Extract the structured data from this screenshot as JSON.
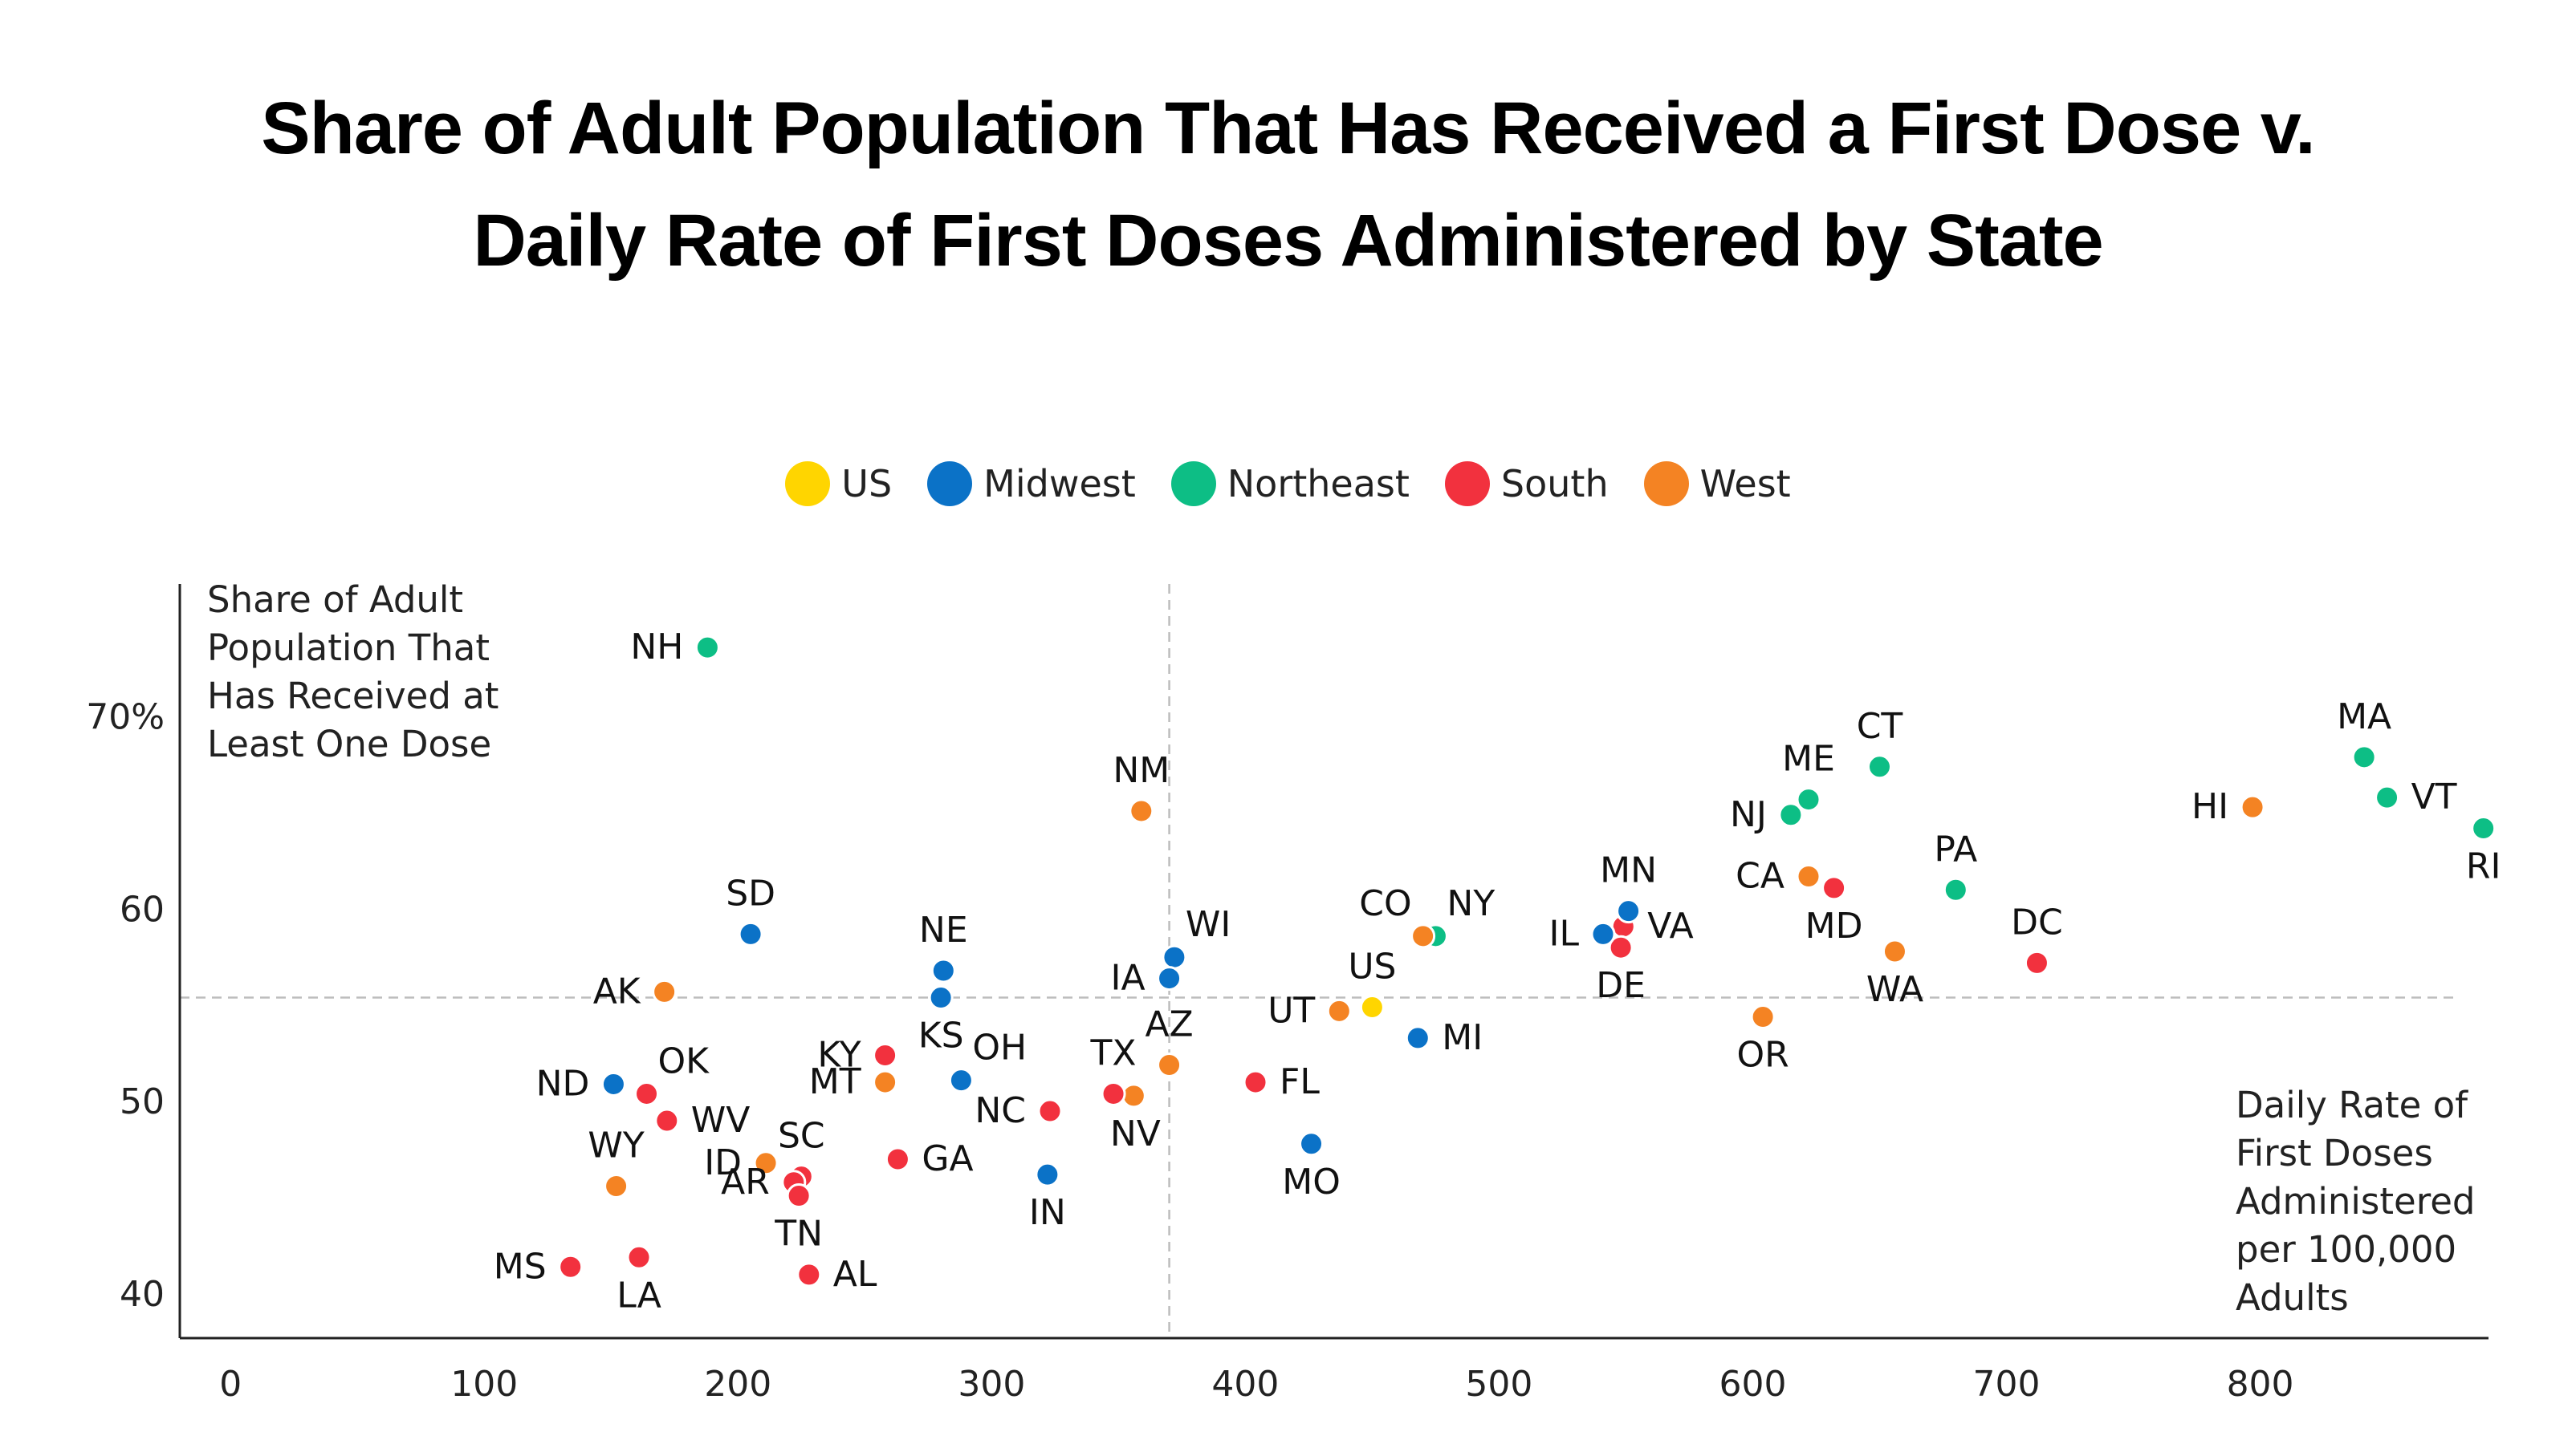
{
  "chart_data": {
    "type": "scatter",
    "title": [
      "Share of Adult Population That Has Received a First Dose v.",
      "Daily Rate of First Doses Administered by State"
    ],
    "ylabel": "Share of Adult Population That Has Received at Least One Dose",
    "ylabel_lines": [
      "Share of Adult",
      "Population That",
      "Has Received at",
      "Least One Dose"
    ],
    "xlabel": "Daily Rate of First Doses Administered per 100,000 Adults",
    "xlabel_lines": [
      "Daily Rate of",
      "First Doses",
      "Administered",
      "per 100,000",
      "Adults"
    ],
    "xlim": [
      -20,
      890
    ],
    "ylim": [
      37.7,
      76.9
    ],
    "x_ticks": [
      0,
      100,
      200,
      300,
      400,
      500,
      600,
      700,
      800
    ],
    "x_tick_labels": [
      "0",
      "100",
      "200",
      "300",
      "400",
      "500",
      "600",
      "700",
      "800"
    ],
    "y_ticks": [
      40,
      50,
      60,
      70
    ],
    "y_tick_labels": [
      "40",
      "50",
      "60",
      "70%"
    ],
    "reference_lines": {
      "x": 370,
      "y": 55.4
    },
    "legend": [
      {
        "name": "US",
        "color": "#FFD500"
      },
      {
        "name": "Midwest",
        "color": "#0B72C7"
      },
      {
        "name": "Northeast",
        "color": "#0DBE85"
      },
      {
        "name": "South",
        "color": "#F2313E"
      },
      {
        "name": "West",
        "color": "#F48323"
      }
    ],
    "points": [
      {
        "label": "NH",
        "region": "Northeast",
        "x": 188,
        "y": 73.6,
        "pos": "left"
      },
      {
        "label": "MA",
        "region": "Northeast",
        "x": 841,
        "y": 67.9,
        "pos": "top"
      },
      {
        "label": "CT",
        "region": "Northeast",
        "x": 650,
        "y": 67.4,
        "pos": "top"
      },
      {
        "label": "VT",
        "region": "Northeast",
        "x": 850,
        "y": 65.8,
        "pos": "right"
      },
      {
        "label": "ME",
        "region": "Northeast",
        "x": 622,
        "y": 65.7,
        "pos": "top"
      },
      {
        "label": "NJ",
        "region": "Northeast",
        "x": 615,
        "y": 64.9,
        "pos": "left"
      },
      {
        "label": "RI",
        "region": "Northeast",
        "x": 888,
        "y": 64.2,
        "pos": "bottom"
      },
      {
        "label": "PA",
        "region": "Northeast",
        "x": 680,
        "y": 61.0,
        "pos": "top"
      },
      {
        "label": "NY",
        "region": "Northeast",
        "x": 475,
        "y": 58.6,
        "pos": "topright"
      },
      {
        "label": "HI",
        "region": "West",
        "x": 797,
        "y": 65.3,
        "pos": "left"
      },
      {
        "label": "NM",
        "region": "West",
        "x": 359,
        "y": 65.1,
        "pos": "top"
      },
      {
        "label": "CA",
        "region": "West",
        "x": 622,
        "y": 61.7,
        "pos": "left"
      },
      {
        "label": "CO",
        "region": "West",
        "x": 470,
        "y": 58.6,
        "pos": "topleft"
      },
      {
        "label": "WA",
        "region": "West",
        "x": 656,
        "y": 57.8,
        "pos": "bottom"
      },
      {
        "label": "AK",
        "region": "West",
        "x": 171,
        "y": 55.7,
        "pos": "left"
      },
      {
        "label": "UT",
        "region": "West",
        "x": 437,
        "y": 54.7,
        "pos": "left"
      },
      {
        "label": "OR",
        "region": "West",
        "x": 604,
        "y": 54.4,
        "pos": "bottom"
      },
      {
        "label": "AZ",
        "region": "West",
        "x": 370,
        "y": 51.9,
        "pos": "top"
      },
      {
        "label": "MT",
        "region": "West",
        "x": 258,
        "y": 51.0,
        "pos": "left"
      },
      {
        "label": "NV",
        "region": "West",
        "x": 356,
        "y": 50.3,
        "pos": "bottomright"
      },
      {
        "label": "ID",
        "region": "West",
        "x": 211,
        "y": 46.8,
        "pos": "left"
      },
      {
        "label": "WY",
        "region": "West",
        "x": 152,
        "y": 45.6,
        "pos": "top"
      },
      {
        "label": "MD",
        "region": "South",
        "x": 632,
        "y": 61.1,
        "pos": "bottom"
      },
      {
        "label": "VA",
        "region": "South",
        "x": 549,
        "y": 59.1,
        "pos": "right"
      },
      {
        "label": "DE",
        "region": "South",
        "x": 548,
        "y": 58.0,
        "pos": "bottom"
      },
      {
        "label": "DC",
        "region": "South",
        "x": 712,
        "y": 57.2,
        "pos": "top"
      },
      {
        "label": "KY",
        "region": "South",
        "x": 258,
        "y": 52.4,
        "pos": "left"
      },
      {
        "label": "TX",
        "region": "South",
        "x": 348,
        "y": 50.4,
        "pos": "top"
      },
      {
        "label": "FL",
        "region": "South",
        "x": 404,
        "y": 51.0,
        "pos": "right"
      },
      {
        "label": "OK",
        "region": "South",
        "x": 164,
        "y": 50.4,
        "pos": "topright"
      },
      {
        "label": "NC",
        "region": "South",
        "x": 323,
        "y": 49.5,
        "pos": "left"
      },
      {
        "label": "WV",
        "region": "South",
        "x": 172,
        "y": 49.0,
        "pos": "right"
      },
      {
        "label": "SC",
        "region": "South",
        "x": 225,
        "y": 46.1,
        "pos": "top"
      },
      {
        "label": "AR",
        "region": "South",
        "x": 222,
        "y": 45.8,
        "pos": "left"
      },
      {
        "label": "GA",
        "region": "South",
        "x": 263,
        "y": 47.0,
        "pos": "right"
      },
      {
        "label": "TN",
        "region": "South",
        "x": 224,
        "y": 45.1,
        "pos": "bottom"
      },
      {
        "label": "AL",
        "region": "South",
        "x": 228,
        "y": 41.0,
        "pos": "right"
      },
      {
        "label": "MS",
        "region": "South",
        "x": 134,
        "y": 41.4,
        "pos": "left"
      },
      {
        "label": "LA",
        "region": "South",
        "x": 161,
        "y": 41.9,
        "pos": "bottom"
      },
      {
        "label": "MN",
        "region": "Midwest",
        "x": 551,
        "y": 59.9,
        "pos": "top"
      },
      {
        "label": "IL",
        "region": "Midwest",
        "x": 541,
        "y": 58.7,
        "pos": "left"
      },
      {
        "label": "SD",
        "region": "Midwest",
        "x": 205,
        "y": 58.7,
        "pos": "top"
      },
      {
        "label": "NE",
        "region": "Midwest",
        "x": 281,
        "y": 56.8,
        "pos": "top"
      },
      {
        "label": "WI",
        "region": "Midwest",
        "x": 372,
        "y": 57.5,
        "pos": "topright"
      },
      {
        "label": "IA",
        "region": "Midwest",
        "x": 370,
        "y": 56.4,
        "pos": "left"
      },
      {
        "label": "KS",
        "region": "Midwest",
        "x": 280,
        "y": 55.4,
        "pos": "bottom"
      },
      {
        "label": "MI",
        "region": "Midwest",
        "x": 468,
        "y": 53.3,
        "pos": "right"
      },
      {
        "label": "ND",
        "region": "Midwest",
        "x": 151,
        "y": 50.9,
        "pos": "left"
      },
      {
        "label": "OH",
        "region": "Midwest",
        "x": 288,
        "y": 51.1,
        "pos": "topright"
      },
      {
        "label": "MO",
        "region": "Midwest",
        "x": 426,
        "y": 47.8,
        "pos": "bottom"
      },
      {
        "label": "IN",
        "region": "Midwest",
        "x": 322,
        "y": 46.2,
        "pos": "bottom"
      },
      {
        "label": "US",
        "region": "US",
        "x": 450,
        "y": 54.9,
        "pos": "top"
      }
    ]
  }
}
